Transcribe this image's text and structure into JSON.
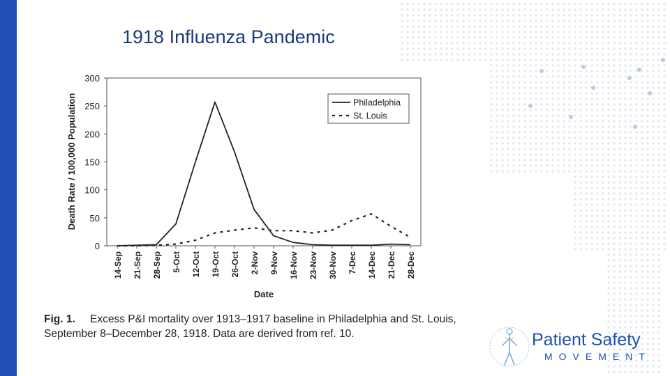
{
  "slide": {
    "title": "1918 Influenza Pandemic",
    "caption_label": "Fig. 1.",
    "caption_text": "Excess P&I mortality over 1913–1917 baseline in Philadelphia and St. Louis, September 8–December 28, 1918. Data are derived from ref. 10.",
    "logo_line1": "Patient Safety",
    "logo_line2": "MOVEMENT",
    "colors": {
      "accent_bar": "#1f4fb5",
      "title": "#1a3a7a",
      "logo": "#1f4fb5"
    }
  },
  "chart_data": {
    "type": "line",
    "xlabel": "Date",
    "ylabel": "Death Rate / 100,000 Population",
    "ylim": [
      0,
      300
    ],
    "yticks": [
      0,
      50,
      100,
      150,
      200,
      250,
      300
    ],
    "categories": [
      "14-Sep",
      "21-Sep",
      "28-Sep",
      "5-Oct",
      "12-Oct",
      "19-Oct",
      "26-Oct",
      "2-Nov",
      "9-Nov",
      "16-Nov",
      "23-Nov",
      "30-Nov",
      "7-Dec",
      "14-Dec",
      "21-Dec",
      "28-Dec"
    ],
    "series": [
      {
        "name": "Philadelphia",
        "style": "solid",
        "values": [
          0,
          1,
          2,
          39,
          150,
          257,
          168,
          65,
          18,
          6,
          2,
          1,
          1,
          1,
          3,
          2
        ]
      },
      {
        "name": "St. Louis",
        "style": "dashed",
        "values": [
          0,
          0,
          1,
          3,
          10,
          23,
          28,
          32,
          27,
          27,
          23,
          28,
          45,
          57,
          35,
          15
        ]
      }
    ],
    "legend_position": "top-right",
    "grid": false
  }
}
